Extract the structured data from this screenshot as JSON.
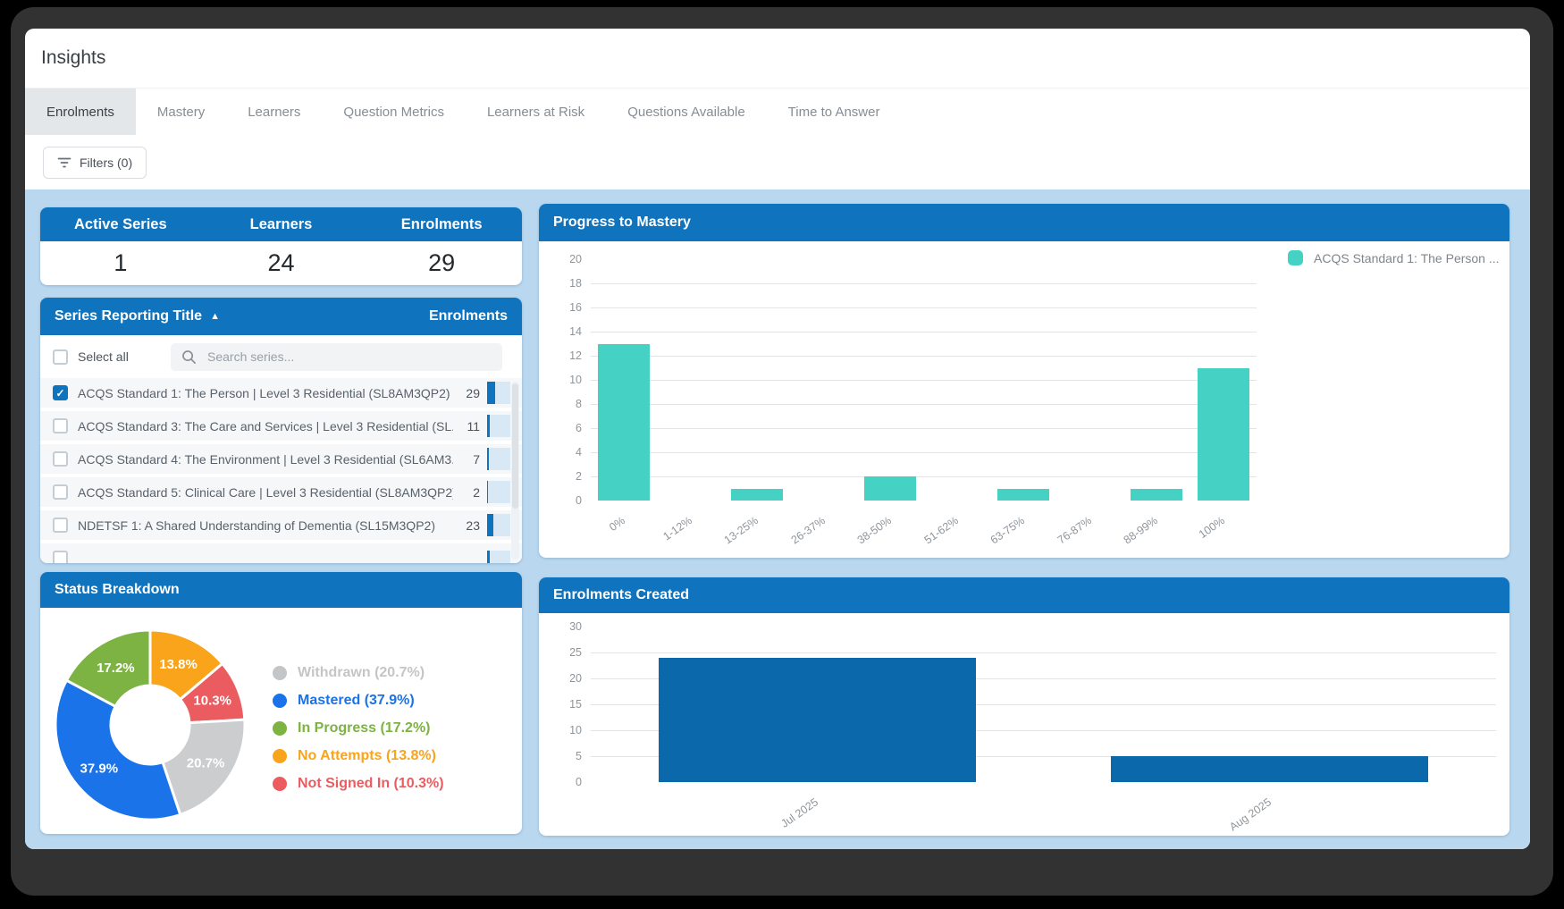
{
  "window": {
    "title": "Insights"
  },
  "tabs": [
    {
      "label": "Enrolments",
      "active": true
    },
    {
      "label": "Mastery",
      "active": false
    },
    {
      "label": "Learners",
      "active": false
    },
    {
      "label": "Question Metrics",
      "active": false
    },
    {
      "label": "Learners at Risk",
      "active": false
    },
    {
      "label": "Questions Available",
      "active": false
    },
    {
      "label": "Time to Answer",
      "active": false
    }
  ],
  "filters": {
    "label": "Filters (0)"
  },
  "stats": {
    "columns": [
      {
        "label": "Active Series",
        "value": "1"
      },
      {
        "label": "Learners",
        "value": "24"
      },
      {
        "label": "Enrolments",
        "value": "29"
      }
    ]
  },
  "series_panel": {
    "title": "Series Reporting Title",
    "sort_icon": "▲",
    "value_header": "Enrolments",
    "select_all_label": "Select all",
    "search_placeholder": "Search series...",
    "rows": [
      {
        "label": "ACQS Standard 1: The Person | Level 3 Residential (SL8AM3QP2)",
        "value": 29,
        "checked": true
      },
      {
        "label": "ACQS Standard 3: The Care and Services | Level 3 Residential (SL...",
        "value": 11,
        "checked": false
      },
      {
        "label": "ACQS Standard 4: The Environment | Level 3 Residential (SL6AM3...",
        "value": 7,
        "checked": false
      },
      {
        "label": "ACQS Standard 5: Clinical Care | Level 3 Residential (SL8AM3QP2)",
        "value": 2,
        "checked": false
      },
      {
        "label": "NDETSF 1: A Shared Understanding of Dementia (SL15M3QP2)",
        "value": 23,
        "checked": false
      }
    ],
    "partial_row_visible": true
  },
  "colors": {
    "header_blue": "#0f73bd",
    "content_background": "#b9d8f0",
    "teal_series": "#45d1c4",
    "enrolments_bar": "#0b68aa",
    "minibar_fill": "#0f73bd",
    "minibar_track": "#d9e8f5"
  },
  "chart_data": [
    {
      "id": "progress_to_mastery",
      "type": "bar",
      "title": "Progress to Mastery",
      "categories": [
        "0%",
        "1-12%",
        "13-25%",
        "26-37%",
        "38-50%",
        "51-62%",
        "63-75%",
        "76-87%",
        "88-99%",
        "100%"
      ],
      "values": [
        13,
        0,
        1,
        0,
        2,
        0,
        1,
        0,
        1,
        11
      ],
      "xlabel": "",
      "ylabel": "",
      "ylim": [
        0,
        20
      ],
      "ytick_step": 2,
      "grid": true,
      "bar_color": "#45d1c4",
      "legend_position": "right",
      "legend": [
        {
          "label": "ACQS Standard 1: The Person ...",
          "color": "#45d1c4"
        }
      ]
    },
    {
      "id": "status_breakdown",
      "type": "pie",
      "title": "Status Breakdown",
      "slices": [
        {
          "label": "No Attempts",
          "pct": 13.8,
          "color": "#f9a41a"
        },
        {
          "label": "Not Signed In",
          "pct": 10.3,
          "color": "#ea5c60"
        },
        {
          "label": "Withdrawn",
          "pct": 20.7,
          "color": "#cbcdcf"
        },
        {
          "label": "Mastered",
          "pct": 37.9,
          "color": "#1a73e8"
        },
        {
          "label": "In Progress",
          "pct": 17.2,
          "color": "#7cb342"
        }
      ],
      "legend_position": "right",
      "legend": [
        {
          "label": "Withdrawn (20.7%)",
          "color": "#c3c5c7"
        },
        {
          "label": "Mastered (37.9%)",
          "color": "#1a73e8"
        },
        {
          "label": "In Progress (17.2%)",
          "color": "#7cb342"
        },
        {
          "label": "No Attempts (13.8%)",
          "color": "#f9a41a"
        },
        {
          "label": "Not Signed In (10.3%)",
          "color": "#ea5c60"
        }
      ]
    },
    {
      "id": "enrolments_created",
      "type": "bar",
      "title": "Enrolments Created",
      "categories": [
        "Jul 2025",
        "Aug 2025"
      ],
      "values": [
        24,
        5
      ],
      "xlabel": "",
      "ylabel": "",
      "ylim": [
        0,
        30
      ],
      "ytick_step": 5,
      "grid": true,
      "bar_color": "#0b68aa"
    }
  ]
}
